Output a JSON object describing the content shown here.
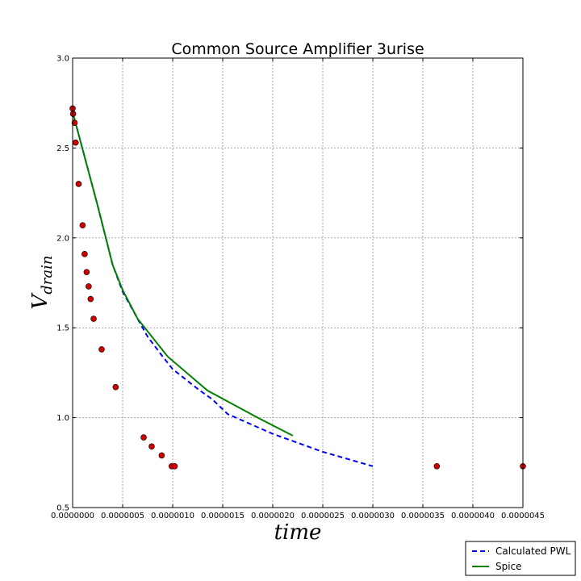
{
  "chart_data": {
    "type": "line",
    "title": "Common Source Amplifier  3urise",
    "xlabel": "time",
    "ylabel_base": "V",
    "ylabel_sub": "drain",
    "xlim": [
      0.0,
      4.5e-06
    ],
    "ylim": [
      0.5,
      3.0
    ],
    "x_ticks": [
      0.0,
      5e-07,
      1e-06,
      1.5e-06,
      2e-06,
      2.5e-06,
      3e-06,
      3.5e-06,
      4e-06,
      4.5e-06
    ],
    "x_tick_labels": [
      "0.0000000",
      "0.0000005",
      "0.0000010",
      "0.0000015",
      "0.0000020",
      "0.0000025",
      "0.0000030",
      "0.0000035",
      "0.0000040",
      "0.0000045"
    ],
    "y_ticks": [
      0.5,
      1.0,
      1.5,
      2.0,
      2.5,
      3.0
    ],
    "y_tick_labels": [
      "0.5",
      "1.0",
      "1.5",
      "2.0",
      "2.5",
      "3.0"
    ],
    "grid": true,
    "legend_position": "bottom-right",
    "series": [
      {
        "name": "Calculated PWL",
        "style": "dashed",
        "color": "#0000ff",
        "x": [
          0.0,
          2.5e-07,
          4e-07,
          5e-07,
          6e-07,
          7.5e-07,
          9e-07,
          1e-06,
          1.25e-06,
          1.4e-06,
          1.55e-06,
          2e-06,
          2.5e-06,
          3e-06
        ],
        "y": [
          2.7,
          2.18,
          1.85,
          1.7,
          1.6,
          1.45,
          1.34,
          1.27,
          1.16,
          1.1,
          1.02,
          0.91,
          0.81,
          0.73
        ]
      },
      {
        "name": "Spice",
        "style": "solid",
        "color": "#008000",
        "x": [
          0.0,
          2.5e-07,
          4e-07,
          5e-07,
          6.5e-07,
          9.5e-07,
          1.35e-06,
          1.85e-06,
          2.2e-06
        ],
        "y": [
          2.7,
          2.18,
          1.85,
          1.71,
          1.55,
          1.34,
          1.15,
          1.0,
          0.9
        ]
      },
      {
        "name": "",
        "style": "markers",
        "color": "#cc0000",
        "x": [
          0.0,
          5e-09,
          2e-08,
          3e-08,
          6e-08,
          1e-07,
          1.2e-07,
          1.4e-07,
          1.6e-07,
          1.8e-07,
          2.1e-07,
          2.9e-07,
          4.3e-07,
          7.1e-07,
          7.9e-07,
          8.9e-07,
          9.9e-07,
          1.02e-06,
          3.64e-06,
          4.5e-06
        ],
        "y": [
          2.72,
          2.69,
          2.64,
          2.53,
          2.3,
          2.07,
          1.91,
          1.81,
          1.73,
          1.66,
          1.55,
          1.38,
          1.17,
          0.89,
          0.84,
          0.79,
          0.73,
          0.73,
          0.73,
          0.73
        ]
      }
    ]
  }
}
